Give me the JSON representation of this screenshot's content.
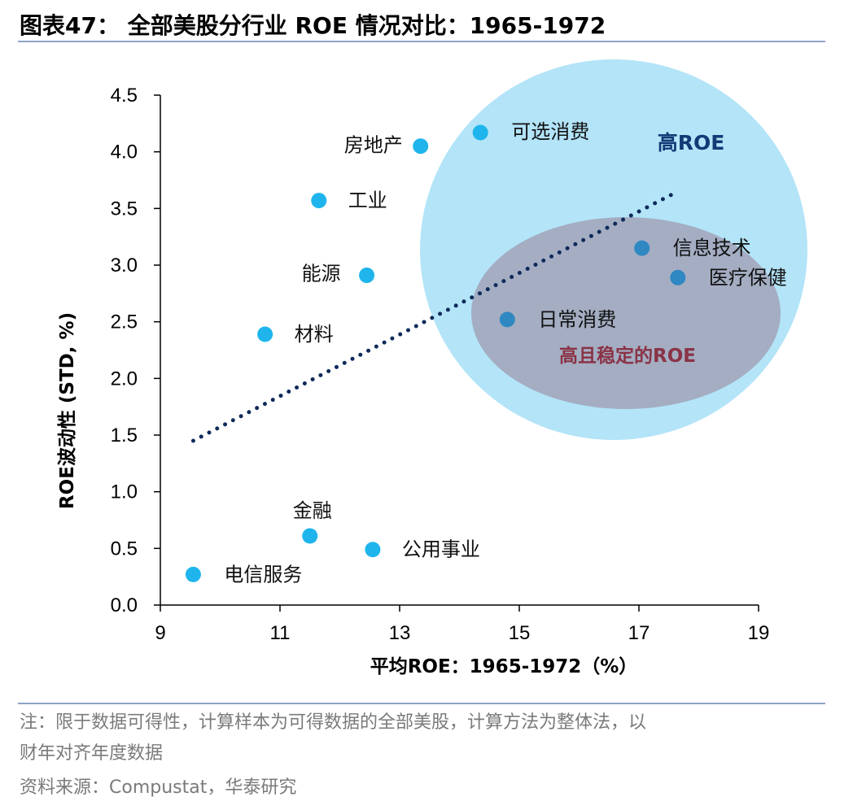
{
  "title": "图表47：  全部美股分行业 ROE 情况对比：1965-1972",
  "notes": {
    "line1": "注：限于数据可得性，计算样本为可得数据的全部美股，计算方法为整体法，以",
    "line2": "财年对齐年度数据",
    "source": "资料来源：Compustat，华泰研究"
  },
  "chart_data": {
    "type": "scatter",
    "xlabel": "平均ROE：1965-1972（%）",
    "ylabel": "ROE波动性 (STD, %)",
    "xlim": [
      9,
      19
    ],
    "ylim": [
      0,
      4.5
    ],
    "xticks": [
      "9",
      "11",
      "13",
      "15",
      "17",
      "19"
    ],
    "yticks": [
      "0.0",
      "0.5",
      "1.0",
      "1.5",
      "2.0",
      "2.5",
      "3.0",
      "3.5",
      "4.0",
      "4.5"
    ],
    "points": [
      {
        "label": "房地产",
        "x": 13.35,
        "y": 4.05,
        "color": "#1fb5ec"
      },
      {
        "label": "可选消费",
        "x": 14.35,
        "y": 4.17,
        "color": "#1fb5ec"
      },
      {
        "label": "工业",
        "x": 11.65,
        "y": 3.57,
        "color": "#1fb5ec"
      },
      {
        "label": "能源",
        "x": 12.45,
        "y": 2.91,
        "color": "#1fb5ec"
      },
      {
        "label": "材料",
        "x": 10.75,
        "y": 2.39,
        "color": "#1fb5ec"
      },
      {
        "label": "信息技术",
        "x": 17.05,
        "y": 3.15,
        "color": "#2f88c2"
      },
      {
        "label": "医疗保健",
        "x": 17.65,
        "y": 2.89,
        "color": "#2f88c2"
      },
      {
        "label": "日常消费",
        "x": 14.8,
        "y": 2.52,
        "color": "#2f88c2"
      },
      {
        "label": "金融",
        "x": 11.5,
        "y": 0.61,
        "color": "#1fb5ec"
      },
      {
        "label": "公用事业",
        "x": 12.55,
        "y": 0.49,
        "color": "#1fb5ec"
      },
      {
        "label": "电信服务",
        "x": 9.55,
        "y": 0.27,
        "color": "#1fb5ec"
      }
    ],
    "trendline": {
      "x": [
        9.55,
        17.65
      ],
      "y": [
        1.45,
        3.65
      ],
      "style": "dotted",
      "color": "#0e2a5a"
    },
    "regions": [
      {
        "label": "高ROE",
        "fill": "#b3e4f8",
        "text_color": "#123a75"
      },
      {
        "label": "高且稳定的ROE",
        "fill": "#a4adc2",
        "text_color": "#8a3346"
      }
    ],
    "grid": false
  }
}
